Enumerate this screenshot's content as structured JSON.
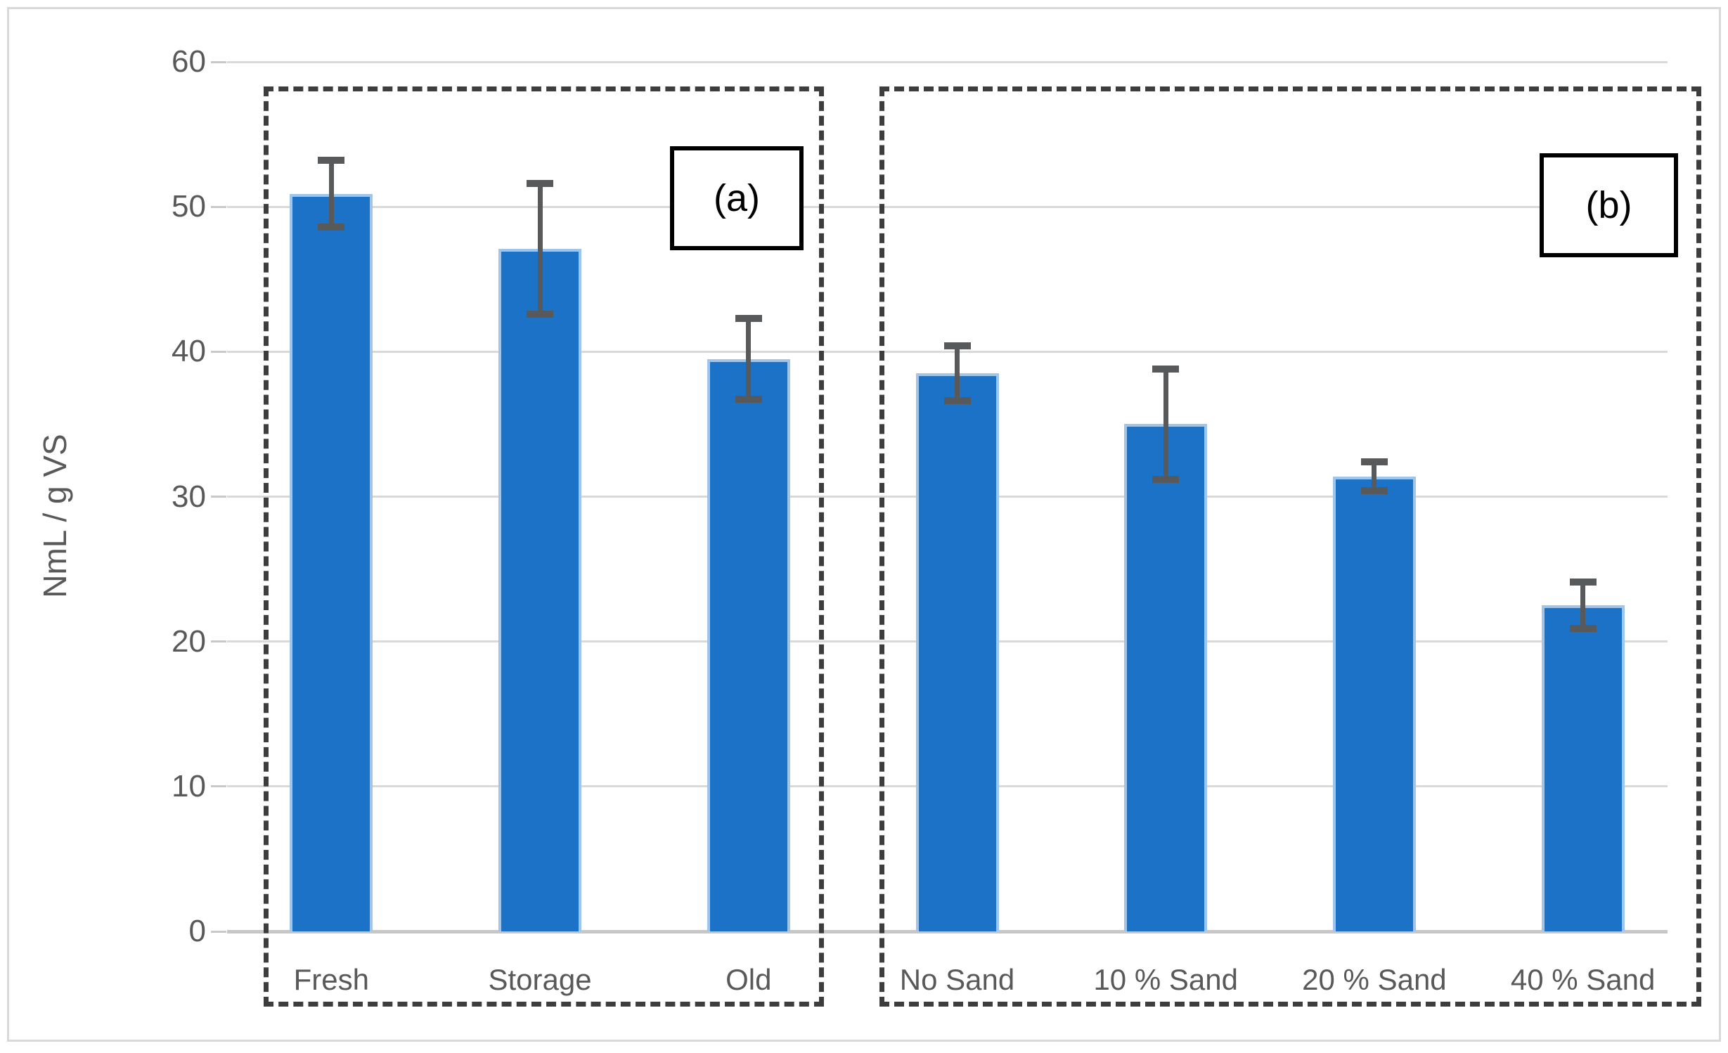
{
  "chart_data": {
    "type": "bar",
    "title": "",
    "ylabel": "NmL / g VS",
    "xlabel": "",
    "ylim": [
      0,
      60
    ],
    "yticks": [
      0,
      10,
      20,
      30,
      40,
      50,
      60
    ],
    "grid": true,
    "legend": false,
    "error_bars": true,
    "bar_color": "#1b72c7",
    "bar_edge_color": "#9fc5ea",
    "error_bar_color": "#58595b",
    "gridline_color": "#d9d9d9",
    "axis_text_color": "#595959",
    "groups": [
      {
        "label": "(a)",
        "categories": [
          "Fresh",
          "Storage",
          "Old"
        ],
        "values": [
          50.9,
          47.1,
          39.5
        ],
        "errors": [
          2.3,
          4.5,
          2.8
        ]
      },
      {
        "label": "(b)",
        "categories": [
          "No Sand",
          "10 % Sand",
          "20 % Sand",
          "40 % Sand"
        ],
        "values": [
          38.5,
          35.0,
          31.4,
          22.5
        ],
        "errors": [
          1.9,
          3.8,
          1.0,
          1.6
        ]
      }
    ]
  }
}
